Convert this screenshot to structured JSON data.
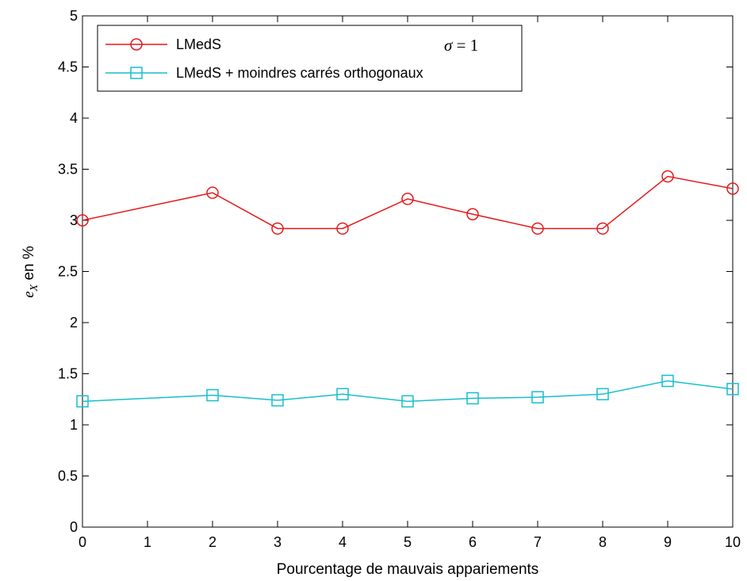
{
  "chart_data": {
    "type": "line",
    "xlabel": "Pourcentage de mauvais appariements",
    "ylabel": {
      "main": "e",
      "sub": "X",
      "suffix": " en %"
    },
    "xlim": [
      0,
      10
    ],
    "ylim": [
      0,
      5
    ],
    "x_ticks": [
      "0",
      "1",
      "2",
      "3",
      "4",
      "5",
      "6",
      "7",
      "8",
      "9",
      "10"
    ],
    "y_ticks": [
      "0",
      "0.5",
      "1",
      "1.5",
      "2",
      "2.5",
      "3",
      "3.5",
      "4",
      "4.5",
      "5"
    ],
    "grid": false,
    "legend_position": "top-left",
    "annotation": {
      "symbol": "σ",
      "rest": " = 1"
    },
    "series": [
      {
        "name": "LMedS",
        "color": "#e41a1c",
        "marker": "circle",
        "x": [
          0,
          2,
          3,
          4,
          5,
          6,
          7,
          8,
          9,
          10
        ],
        "y": [
          3.0,
          3.27,
          2.92,
          2.92,
          3.21,
          3.06,
          2.92,
          2.92,
          3.43,
          3.31
        ]
      },
      {
        "name": "LMedS + moindres carrés orthogonaux",
        "color": "#17becf",
        "marker": "square",
        "x": [
          0,
          2,
          3,
          4,
          5,
          6,
          7,
          8,
          9,
          10
        ],
        "y": [
          1.23,
          1.29,
          1.24,
          1.3,
          1.23,
          1.26,
          1.27,
          1.3,
          1.43,
          1.35
        ]
      }
    ]
  }
}
